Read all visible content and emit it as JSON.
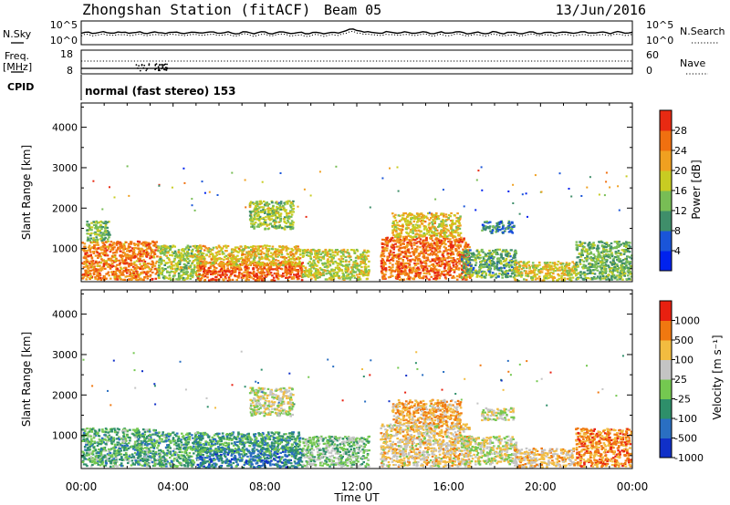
{
  "header": {
    "station": "Zhongshan Station (fitACF)",
    "beam": "Beam 05",
    "date": "13/Jun/2016"
  },
  "status_panels": {
    "nsky_label": "N.Sky",
    "nsearch_label": "N.Search",
    "nsky_ticks": [
      "10^5",
      "10^0"
    ],
    "nsearch_ticks": [
      "10^5",
      "10^0"
    ],
    "freq_label_1": "Freq.",
    "freq_label_2": "[MHz]",
    "freq_ticks": [
      "18",
      "8"
    ],
    "nave_label": "Nave",
    "nave_ticks": [
      "60",
      "0"
    ],
    "cpid_label": "CPID",
    "cpid_text": "normal (fast stereo) 153"
  },
  "chart_data": [
    {
      "type": "heatmap",
      "name": "power",
      "ylabel": "Slant Range [km]",
      "ylim": [
        180,
        4600
      ],
      "yticks": [
        1000,
        2000,
        3000,
        4000
      ],
      "xlim": [
        0,
        24
      ],
      "colorbar_label": "Power [dB]",
      "colorbar_ticks": [
        4,
        8,
        12,
        16,
        20,
        24,
        28
      ],
      "colors": [
        "#0022ee",
        "#1a55d8",
        "#3f8e6a",
        "#78bd55",
        "#c8cc22",
        "#f0a020",
        "#f07010",
        "#e82a12"
      ],
      "scatter_regions": [
        {
          "t": [
            0.0,
            3.3
          ],
          "r": [
            250,
            1200
          ],
          "level": 5.6
        },
        {
          "t": [
            0.2,
            1.2
          ],
          "r": [
            1200,
            1700
          ],
          "level": 3.0
        },
        {
          "t": [
            3.3,
            5.2
          ],
          "r": [
            250,
            1100
          ],
          "level": 3.5
        },
        {
          "t": [
            5.0,
            9.6
          ],
          "r": [
            180,
            700
          ],
          "level": 6.2
        },
        {
          "t": [
            5.0,
            9.5
          ],
          "r": [
            600,
            1100
          ],
          "level": 4.5
        },
        {
          "t": [
            7.3,
            9.2
          ],
          "r": [
            1500,
            2200
          ],
          "level": 3.4
        },
        {
          "t": [
            9.6,
            12.5
          ],
          "r": [
            250,
            1000
          ],
          "level": 3.8
        },
        {
          "t": [
            13.0,
            16.9
          ],
          "r": [
            250,
            1300
          ],
          "level": 6.0
        },
        {
          "t": [
            13.5,
            16.5
          ],
          "r": [
            1300,
            1900
          ],
          "level": 4.4
        },
        {
          "t": [
            16.5,
            18.9
          ],
          "r": [
            300,
            1000
          ],
          "level": 2.6
        },
        {
          "t": [
            17.4,
            18.8
          ],
          "r": [
            1400,
            1700
          ],
          "level": 1.6
        },
        {
          "t": [
            18.8,
            21.5
          ],
          "r": [
            180,
            700
          ],
          "level": 4.2
        },
        {
          "t": [
            21.5,
            24.0
          ],
          "r": [
            250,
            1200
          ],
          "level": 2.8
        }
      ]
    },
    {
      "type": "heatmap",
      "name": "velocity",
      "ylabel": "Slant Range [km]",
      "ylim": [
        180,
        4600
      ],
      "yticks": [
        1000,
        2000,
        3000,
        4000
      ],
      "xlim": [
        0,
        24
      ],
      "xticks": [
        "00:00",
        "04:00",
        "08:00",
        "12:00",
        "16:00",
        "20:00",
        "00:00"
      ],
      "xlabel": "Time UT",
      "colorbar_label": "Velocity [m s⁻¹]",
      "colorbar_ticks": [
        "1000",
        "500",
        "100",
        "25",
        "-25",
        "-100",
        "-500",
        "-1000"
      ],
      "colors": [
        "#1030c8",
        "#2a6fc2",
        "#2e8f6a",
        "#74c850",
        "#c4c4c4",
        "#f2bc40",
        "#f07810",
        "#e82010"
      ],
      "scatter_regions": [
        {
          "t": [
            0.0,
            3.3
          ],
          "r": [
            250,
            1200
          ],
          "level": 2.5
        },
        {
          "t": [
            3.3,
            5.2
          ],
          "r": [
            250,
            1100
          ],
          "level": 2.4
        },
        {
          "t": [
            5.0,
            9.6
          ],
          "r": [
            180,
            700
          ],
          "level": 1.4
        },
        {
          "t": [
            5.0,
            9.5
          ],
          "r": [
            600,
            1100
          ],
          "level": 2.2
        },
        {
          "t": [
            7.3,
            9.2
          ],
          "r": [
            1500,
            2200
          ],
          "level": 4.0
        },
        {
          "t": [
            9.6,
            12.5
          ],
          "r": [
            250,
            1000
          ],
          "level": 3.2
        },
        {
          "t": [
            13.0,
            16.9
          ],
          "r": [
            250,
            1300
          ],
          "level": 4.6
        },
        {
          "t": [
            13.5,
            16.5
          ],
          "r": [
            1300,
            1900
          ],
          "level": 5.2
        },
        {
          "t": [
            16.5,
            18.9
          ],
          "r": [
            300,
            1000
          ],
          "level": 4.0
        },
        {
          "t": [
            17.4,
            18.8
          ],
          "r": [
            1400,
            1700
          ],
          "level": 4.0
        },
        {
          "t": [
            18.8,
            21.5
          ],
          "r": [
            180,
            700
          ],
          "level": 4.8
        },
        {
          "t": [
            21.5,
            24.0
          ],
          "r": [
            250,
            1200
          ],
          "level": 5.8
        }
      ]
    }
  ]
}
